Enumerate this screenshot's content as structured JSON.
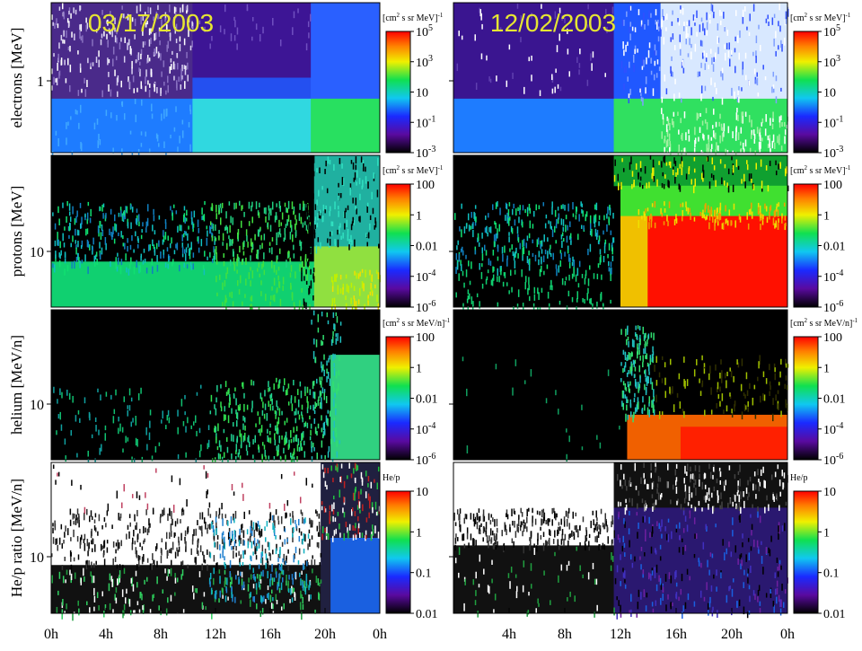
{
  "dates": [
    "03/17/2003",
    "12/02/2003"
  ],
  "panels": [
    {
      "ylabel": "electrons [MeV]",
      "ytick": "1",
      "unit": [
        "[cm",
        "2",
        " s sr MeV]",
        "-1"
      ],
      "colorbar": [
        {
          "text": "10",
          "sup": "5"
        },
        {
          "text": "10",
          "sup": "3"
        },
        {
          "text": "10"
        },
        {
          "text": "10",
          "sup": "-1"
        },
        {
          "text": "10",
          "sup": "-3"
        }
      ]
    },
    {
      "ylabel": "protons [MeV]",
      "ytick": "10",
      "unit": [
        "[cm",
        "2",
        " s sr MeV]",
        "-1"
      ],
      "colorbar": [
        {
          "text": "100"
        },
        {
          "text": "1"
        },
        {
          "text": "0.01"
        },
        {
          "text": "10",
          "sup": "-4"
        },
        {
          "text": "10",
          "sup": "-6"
        }
      ]
    },
    {
      "ylabel": "helium [MeV/n]",
      "ytick": "10",
      "unit": [
        "[cm",
        "2",
        " s sr MeV/n]",
        "-1"
      ],
      "colorbar": [
        {
          "text": "100"
        },
        {
          "text": "1"
        },
        {
          "text": "0.01"
        },
        {
          "text": "10",
          "sup": "-4"
        },
        {
          "text": "10",
          "sup": "-6"
        }
      ]
    },
    {
      "ylabel": "He/p ratio [MeV/n]",
      "ytick": "10",
      "unit": [
        "He/p"
      ],
      "colorbar": [
        {
          "text": "10"
        },
        {
          "text": "1"
        },
        {
          "text": "0.1"
        },
        {
          "text": "0.01"
        }
      ]
    }
  ],
  "xticks_left": [
    "0h",
    "4h",
    "8h",
    "12h",
    "16h",
    "20h",
    "0h"
  ],
  "xticks_right": [
    "4h",
    "8h",
    "12h",
    "16h",
    "20h",
    "0h"
  ]
}
